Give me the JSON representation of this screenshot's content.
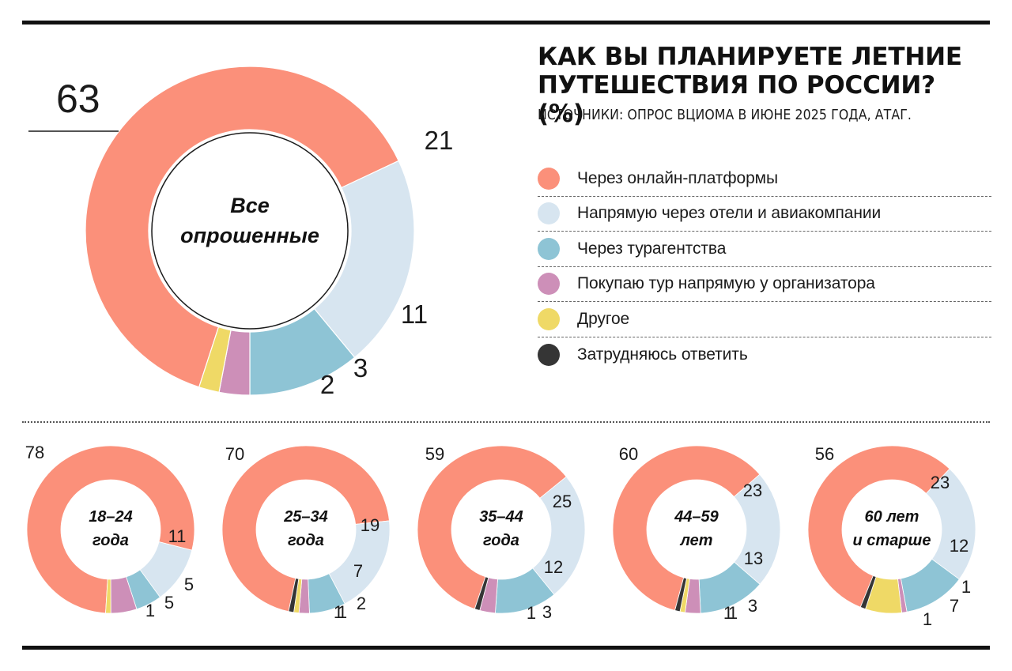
{
  "title_lines": [
    "КАК ВЫ ПЛАНИРУЕТЕ ЛЕТНИЕ",
    "ПУТЕШЕСТВИЯ ПО РОССИИ? (%)"
  ],
  "source": "ИСТОЧНИКИ: ОПРОС ВЦИОМА В ИЮНЕ 2025 ГОДА, АТАГ.",
  "colors": {
    "online": "#fb907a",
    "direct": "#d7e5f0",
    "agency": "#8ec4d5",
    "organizer": "#cd8fb8",
    "other": "#efd966",
    "hard": "#353535"
  },
  "legend": [
    {
      "key": "online",
      "label": "Через онлайн-платформы"
    },
    {
      "key": "direct",
      "label": "Напрямую через отели и авиакомпании"
    },
    {
      "key": "agency",
      "label": "Через турагентства"
    },
    {
      "key": "organizer",
      "label": "Покупаю тур напрямую у организатора"
    },
    {
      "key": "other",
      "label": "Другое"
    },
    {
      "key": "hard",
      "label": "Затрудняюсь ответить"
    }
  ],
  "chart_data": [
    {
      "type": "pie",
      "group_lines": [
        "Все",
        "опрошенные"
      ],
      "categories": [
        "Через онлайн-платформы",
        "Напрямую через отели и авиакомпании",
        "Через турагентства",
        "Покупаю тур напрямую у организатора",
        "Другое",
        "Затрудняюсь ответить"
      ],
      "values": [
        63,
        21,
        11,
        3,
        2,
        0
      ],
      "labels": [
        "63",
        "21",
        "11",
        "3",
        "2"
      ]
    },
    {
      "type": "pie",
      "group_lines": [
        "18–24",
        "года"
      ],
      "categories": [
        "Через онлайн-платформы",
        "Напрямую через отели и авиакомпании",
        "Через турагентства",
        "Покупаю тур напрямую у организатора",
        "Другое",
        "Затрудняюсь ответить"
      ],
      "values": [
        78,
        11,
        5,
        5,
        1,
        0
      ],
      "labels": [
        "78",
        "11",
        "5",
        "5",
        "1"
      ]
    },
    {
      "type": "pie",
      "group_lines": [
        "25–34",
        "года"
      ],
      "categories": [
        "Через онлайн-платформы",
        "Напрямую через отели и авиакомпании",
        "Через турагентства",
        "Покупаю тур напрямую у организатора",
        "Другое",
        "Затрудняюсь ответить"
      ],
      "values": [
        70,
        19,
        7,
        2,
        1,
        1
      ],
      "labels": [
        "70",
        "19",
        "7",
        "2",
        "1",
        "1"
      ]
    },
    {
      "type": "pie",
      "group_lines": [
        "35–44",
        "года"
      ],
      "categories": [
        "Через онлайн-платформы",
        "Напрямую через отели и авиакомпании",
        "Через турагентства",
        "Покупаю тур напрямую у организатора",
        "Другое",
        "Затрудняюсь ответить"
      ],
      "values": [
        59,
        25,
        12,
        3,
        0,
        1
      ],
      "labels": [
        "59",
        "25",
        "12",
        "3",
        "1"
      ]
    },
    {
      "type": "pie",
      "group_lines": [
        "44–59",
        "лет"
      ],
      "categories": [
        "Через онлайн-платформы",
        "Напрямую через отели и авиакомпании",
        "Через турагентства",
        "Покупаю тур напрямую у организатора",
        "Другое",
        "Затрудняюсь ответить"
      ],
      "values": [
        60,
        23,
        13,
        3,
        1,
        1
      ],
      "labels": [
        "60",
        "23",
        "13",
        "3",
        "1",
        "1"
      ]
    },
    {
      "type": "pie",
      "group_lines": [
        "60 лет",
        "и старше"
      ],
      "categories": [
        "Через онлайн-платформы",
        "Напрямую через отели и авиакомпании",
        "Через турагентства",
        "Покупаю тур напрямую у организатора",
        "Другое",
        "Затрудняюсь ответить"
      ],
      "values": [
        56,
        23,
        12,
        1,
        7,
        1
      ],
      "labels": [
        "56",
        "23",
        "12",
        "1",
        "7",
        "1"
      ]
    }
  ]
}
